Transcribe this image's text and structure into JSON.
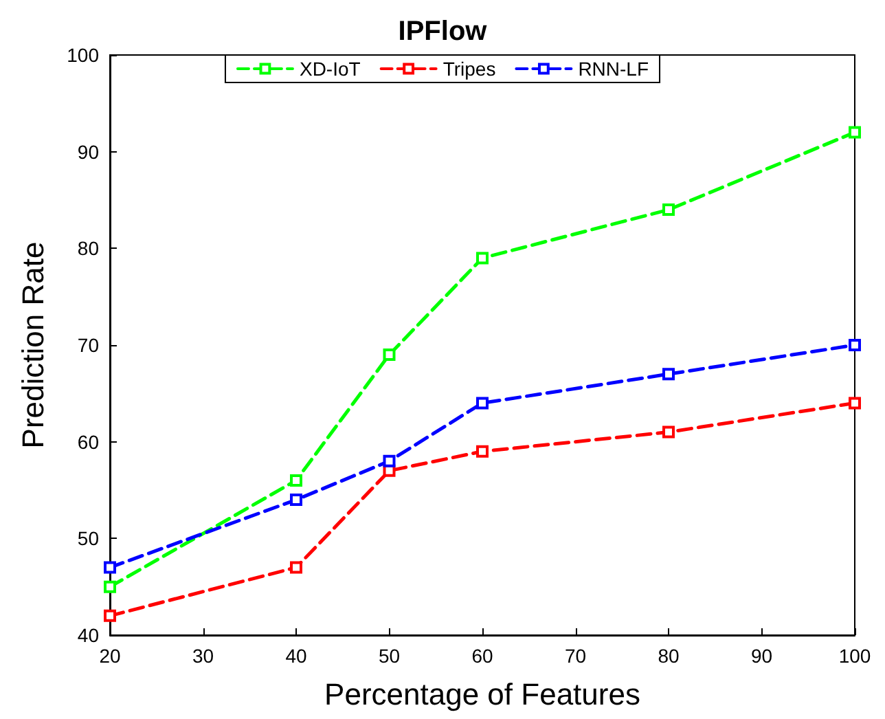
{
  "chart_data": {
    "type": "line",
    "title": "IPFlow",
    "xlabel": "Percentage of Features",
    "ylabel": "Prediction Rate",
    "x": [
      20,
      40,
      50,
      60,
      80,
      100
    ],
    "series": [
      {
        "name": "XD-IoT",
        "color": "#00ff00",
        "values": [
          45,
          56,
          69,
          79,
          84,
          92
        ]
      },
      {
        "name": "Tripes",
        "color": "#ff0000",
        "values": [
          42,
          47,
          57,
          59,
          61,
          64
        ]
      },
      {
        "name": "RNN-LF",
        "color": "#0000ff",
        "values": [
          47,
          54,
          58,
          64,
          67,
          70
        ]
      }
    ],
    "xlim": [
      20,
      100
    ],
    "xticks": [
      20,
      30,
      40,
      50,
      60,
      70,
      80,
      90,
      100
    ],
    "ylim": [
      40,
      100
    ],
    "yticks": [
      40,
      50,
      60,
      70,
      80,
      90,
      100
    ],
    "grid": false,
    "legend": "top",
    "marker": "square",
    "line_style": "dashed"
  }
}
